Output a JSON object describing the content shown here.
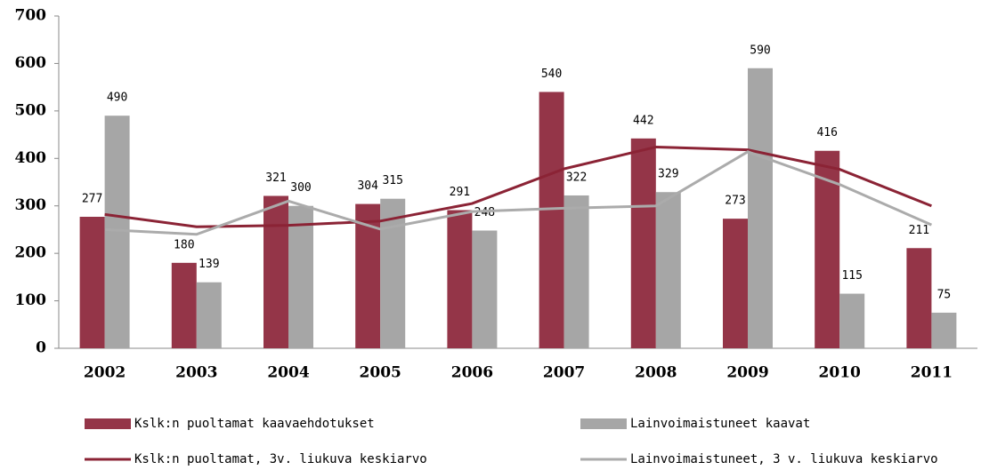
{
  "chart_data": {
    "type": "bar",
    "categories": [
      "2002",
      "2003",
      "2004",
      "2005",
      "2006",
      "2007",
      "2008",
      "2009",
      "2010",
      "2011"
    ],
    "series": [
      {
        "name": "Kslk:n puoltamat kaavaehdotukset",
        "type": "bar",
        "color": "#943548",
        "values": [
          277,
          180,
          321,
          304,
          291,
          540,
          442,
          273,
          416,
          211
        ]
      },
      {
        "name": "Lainvoimaistuneet kaavat",
        "type": "bar",
        "color": "#a6a6a6",
        "values": [
          490,
          139,
          300,
          315,
          248,
          322,
          329,
          590,
          115,
          75
        ]
      },
      {
        "name": "Kslk:n puoltamat, 3v. liukuva keskiarvo",
        "type": "line",
        "color": "#8b2335",
        "values": [
          282,
          256,
          259,
          268,
          305,
          378,
          424,
          418,
          377,
          300
        ]
      },
      {
        "name": "Lainvoimaistuneet, 3 v. liukuva keskiarvo",
        "type": "line",
        "color": "#ababab",
        "values": [
          250,
          240,
          310,
          251,
          288,
          295,
          300,
          414,
          345,
          260
        ]
      }
    ],
    "ylim": [
      0,
      700
    ],
    "yticks": [
      0,
      100,
      200,
      300,
      400,
      500,
      600,
      700
    ],
    "grid": false
  }
}
